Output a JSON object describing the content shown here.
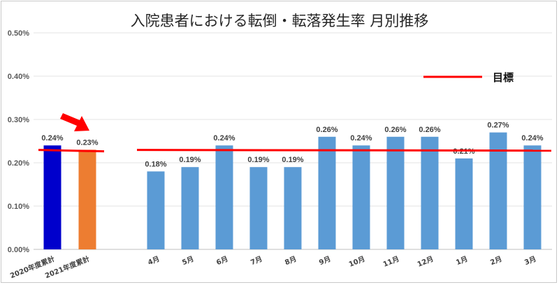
{
  "chart_data": {
    "type": "bar",
    "title": "入院患者における転倒・転落発生率 月別推移",
    "categories": [
      "2020年度累計",
      "2021年度累計",
      "",
      "4月",
      "5月",
      "6月",
      "7月",
      "8月",
      "9月",
      "10月",
      "11月",
      "12月",
      "1月",
      "2月",
      "3月"
    ],
    "values": [
      0.24,
      0.23,
      null,
      0.18,
      0.19,
      0.24,
      0.19,
      0.19,
      0.26,
      0.24,
      0.26,
      0.26,
      0.21,
      0.27,
      0.24
    ],
    "value_labels": [
      "0.24%",
      "0.23%",
      "",
      "0.18%",
      "0.19%",
      "0.24%",
      "0.19%",
      "0.19%",
      "0.26%",
      "0.24%",
      "0.26%",
      "0.26%",
      "0.21%",
      "0.27%",
      "0.24%"
    ],
    "bar_colors": [
      "#0000cc",
      "#ed7d31",
      "",
      "#5b9bd5",
      "#5b9bd5",
      "#5b9bd5",
      "#5b9bd5",
      "#5b9bd5",
      "#5b9bd5",
      "#5b9bd5",
      "#5b9bd5",
      "#5b9bd5",
      "#5b9bd5",
      "#5b9bd5",
      "#5b9bd5"
    ],
    "y_ticks": [
      "0.00%",
      "0.10%",
      "0.20%",
      "0.30%",
      "0.40%",
      "0.50%"
    ],
    "ylim": [
      0,
      0.5
    ],
    "grid": true,
    "target": {
      "label": "目標",
      "value": 0.228,
      "color": "#ff0000"
    },
    "annotation": {
      "type": "arrow",
      "color": "#ff0000",
      "points_to": "2021年度累計"
    },
    "legend_position": "top-right"
  }
}
